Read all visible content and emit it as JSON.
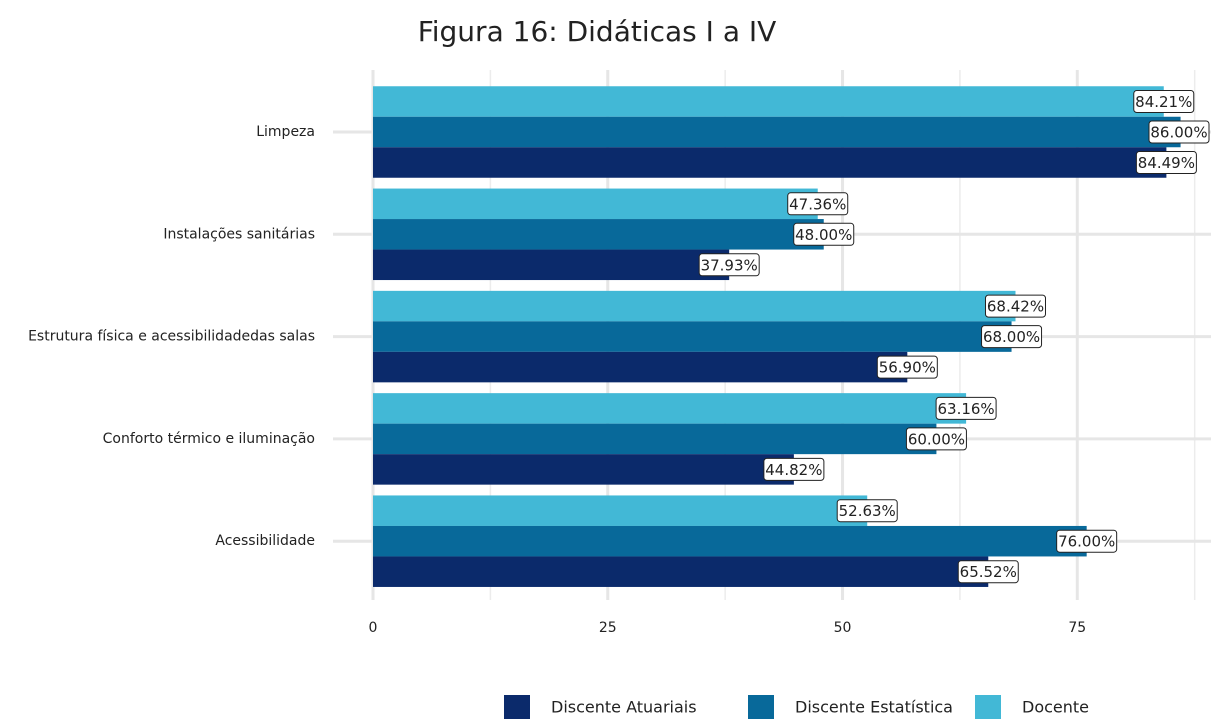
{
  "chart_data": {
    "type": "barh",
    "title": "Figura 16: Didáticas I a IV",
    "categories": [
      "Limpeza",
      "Instalações sanitárias",
      "Estrutura física e acessibilidadedas salas",
      "Conforto térmico e iluminação",
      "Acessibilidade"
    ],
    "series": [
      {
        "name": "Docente",
        "color": "#42b8d6",
        "values": [
          84.21,
          47.36,
          68.42,
          63.16,
          52.63
        ],
        "value_labels": [
          "84.21%",
          "47.36%",
          "68.42%",
          "63.16%",
          "52.63%"
        ]
      },
      {
        "name": "Discente Estatística",
        "color": "#08699a",
        "values": [
          86,
          48,
          68,
          60,
          76
        ],
        "value_labels": [
          "86.00%",
          "48.00%",
          "68.00%",
          "60.00%",
          "76.00%"
        ]
      },
      {
        "name": "Discente Atuariais",
        "color": "#0b2a6b",
        "values": [
          84.49,
          37.93,
          56.9,
          44.82,
          65.52
        ],
        "value_labels": [
          "84.49%",
          "37.93%",
          "56.90%",
          "44.82%",
          "65.52%"
        ]
      }
    ],
    "legend_order": [
      "Discente Atuariais",
      "Discente Estatística",
      "Docente"
    ],
    "xlim": [
      0,
      89.24
    ],
    "xticks": [
      0,
      25,
      50,
      75
    ],
    "xminor": [
      12.5,
      37.5,
      62.5,
      87.5
    ],
    "grid": true,
    "legend": "bottom"
  }
}
